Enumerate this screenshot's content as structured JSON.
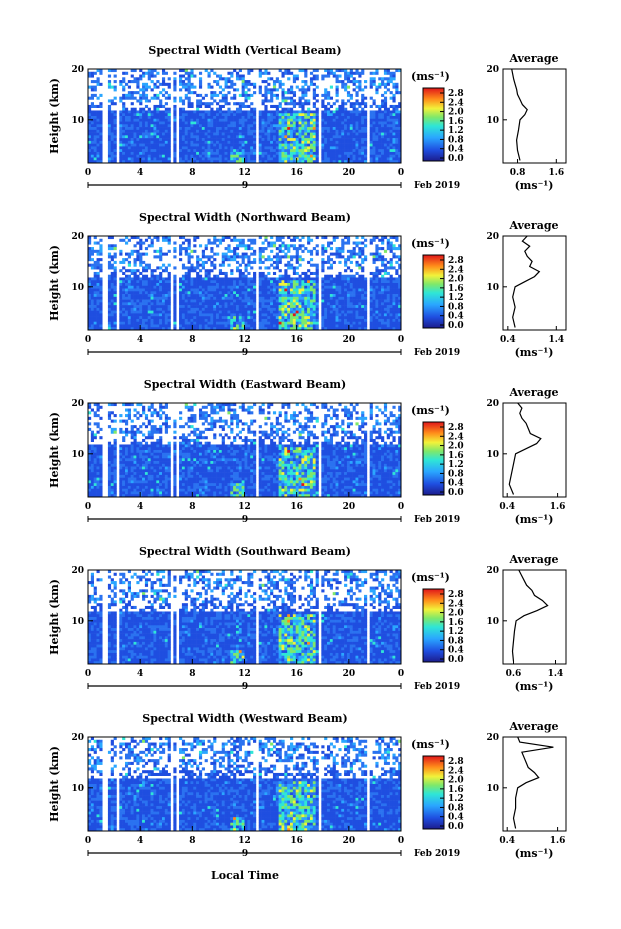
{
  "figure": {
    "x_label": "Local Time",
    "date_label": "Feb 2019",
    "day_label": "9",
    "y_label": "Height (km)",
    "colorbar_unit": "(ms⁻¹)",
    "colorbar_ticks": [
      "2.8",
      "2.4",
      "2.0",
      "1.6",
      "1.2",
      "0.8",
      "0.4",
      "0.0"
    ],
    "avg_title": "Average",
    "avg_unit": "(ms⁻¹)"
  },
  "chart_data": [
    {
      "type": "heatmap",
      "title": "Spectral Width (Vertical Beam)",
      "xlabel": "Local Time",
      "ylabel": "Height (km)",
      "x_ticks": [
        "0",
        "4",
        "8",
        "12",
        "16",
        "20",
        "0"
      ],
      "y_ticks": [
        "20",
        "10"
      ],
      "xlim": [
        0,
        24
      ],
      "ylim": [
        1.5,
        20
      ],
      "colorbar": {
        "label": "(ms⁻¹)",
        "range": [
          0,
          3.0
        ]
      },
      "average_profile": {
        "title": "Average",
        "xlabel": "(ms⁻¹)",
        "x_ticks": [
          "0.8",
          "1.6"
        ],
        "xlim": [
          0.5,
          1.8
        ],
        "heights": [
          2,
          4,
          6,
          8,
          10,
          11,
          12,
          13,
          14,
          15,
          16,
          17,
          18,
          19,
          20
        ],
        "values": [
          0.85,
          0.8,
          0.78,
          0.82,
          0.85,
          0.95,
          1.0,
          0.9,
          0.85,
          0.8,
          0.78,
          0.75,
          0.72,
          0.7,
          0.68
        ]
      }
    },
    {
      "type": "heatmap",
      "title": "Spectral Width (Northward Beam)",
      "xlabel": "Local Time",
      "ylabel": "Height (km)",
      "x_ticks": [
        "0",
        "4",
        "8",
        "12",
        "16",
        "20",
        "0"
      ],
      "y_ticks": [
        "20",
        "10"
      ],
      "xlim": [
        0,
        24
      ],
      "ylim": [
        1.5,
        20
      ],
      "colorbar": {
        "label": "(ms⁻¹)",
        "range": [
          0,
          3.0
        ]
      },
      "average_profile": {
        "title": "Average",
        "xlabel": "(ms⁻¹)",
        "x_ticks": [
          "0.4",
          "1.4"
        ],
        "xlim": [
          0.3,
          1.6
        ],
        "heights": [
          2,
          4,
          6,
          8,
          10,
          11,
          12,
          13,
          14,
          15,
          16,
          17,
          18,
          19,
          20
        ],
        "values": [
          0.55,
          0.5,
          0.55,
          0.5,
          0.55,
          0.75,
          0.95,
          1.05,
          0.85,
          0.9,
          0.8,
          0.75,
          0.85,
          0.7,
          0.8
        ]
      }
    },
    {
      "type": "heatmap",
      "title": "Spectral Width (Eastward Beam)",
      "xlabel": "Local Time",
      "ylabel": "Height (km)",
      "x_ticks": [
        "0",
        "4",
        "8",
        "12",
        "16",
        "20",
        "0"
      ],
      "y_ticks": [
        "20",
        "10"
      ],
      "xlim": [
        0,
        24
      ],
      "ylim": [
        1.5,
        20
      ],
      "colorbar": {
        "label": "(ms⁻¹)",
        "range": [
          0,
          3.0
        ]
      },
      "average_profile": {
        "title": "Average",
        "xlabel": "(ms⁻¹)",
        "x_ticks": [
          "0.4",
          "1.6"
        ],
        "xlim": [
          0.3,
          1.8
        ],
        "heights": [
          2,
          4,
          6,
          8,
          10,
          11,
          12,
          13,
          14,
          15,
          16,
          17,
          18,
          19,
          20
        ],
        "values": [
          0.55,
          0.45,
          0.5,
          0.55,
          0.6,
          0.85,
          1.1,
          1.2,
          0.95,
          0.9,
          0.85,
          0.75,
          0.7,
          0.75,
          0.65
        ]
      }
    },
    {
      "type": "heatmap",
      "title": "Spectral Width (Southward Beam)",
      "xlabel": "Local Time",
      "ylabel": "Height (km)",
      "x_ticks": [
        "0",
        "4",
        "8",
        "12",
        "16",
        "20",
        "0"
      ],
      "y_ticks": [
        "20",
        "10"
      ],
      "xlim": [
        0,
        24
      ],
      "ylim": [
        1.5,
        20
      ],
      "colorbar": {
        "label": "(ms⁻¹)",
        "range": [
          0,
          3.0
        ]
      },
      "average_profile": {
        "title": "Average",
        "xlabel": "(ms⁻¹)",
        "x_ticks": [
          "0.6",
          "1.4"
        ],
        "xlim": [
          0.4,
          1.6
        ],
        "heights": [
          2,
          4,
          6,
          8,
          10,
          11,
          12,
          13,
          14,
          15,
          16,
          17,
          18,
          19,
          20
        ],
        "values": [
          0.6,
          0.58,
          0.6,
          0.62,
          0.65,
          0.8,
          1.05,
          1.25,
          1.15,
          1.0,
          0.95,
          0.85,
          0.8,
          0.75,
          0.7
        ]
      }
    },
    {
      "type": "heatmap",
      "title": "Spectral Width (Westward Beam)",
      "xlabel": "Local Time",
      "ylabel": "Height (km)",
      "x_ticks": [
        "0",
        "4",
        "8",
        "12",
        "16",
        "20",
        "0"
      ],
      "y_ticks": [
        "20",
        "10"
      ],
      "xlim": [
        0,
        24
      ],
      "ylim": [
        1.5,
        20
      ],
      "colorbar": {
        "label": "(ms⁻¹)",
        "range": [
          0,
          3.0
        ]
      },
      "average_profile": {
        "title": "Average",
        "xlabel": "(ms⁻¹)",
        "x_ticks": [
          "0.4",
          "1.6"
        ],
        "xlim": [
          0.3,
          1.8
        ],
        "heights": [
          2,
          4,
          6,
          8,
          10,
          11,
          12,
          13,
          14,
          15,
          16,
          17,
          18,
          19,
          20
        ],
        "values": [
          0.6,
          0.55,
          0.6,
          0.6,
          0.65,
          0.85,
          1.15,
          1.05,
          0.9,
          0.85,
          0.8,
          0.75,
          1.5,
          0.7,
          0.65
        ]
      }
    }
  ]
}
